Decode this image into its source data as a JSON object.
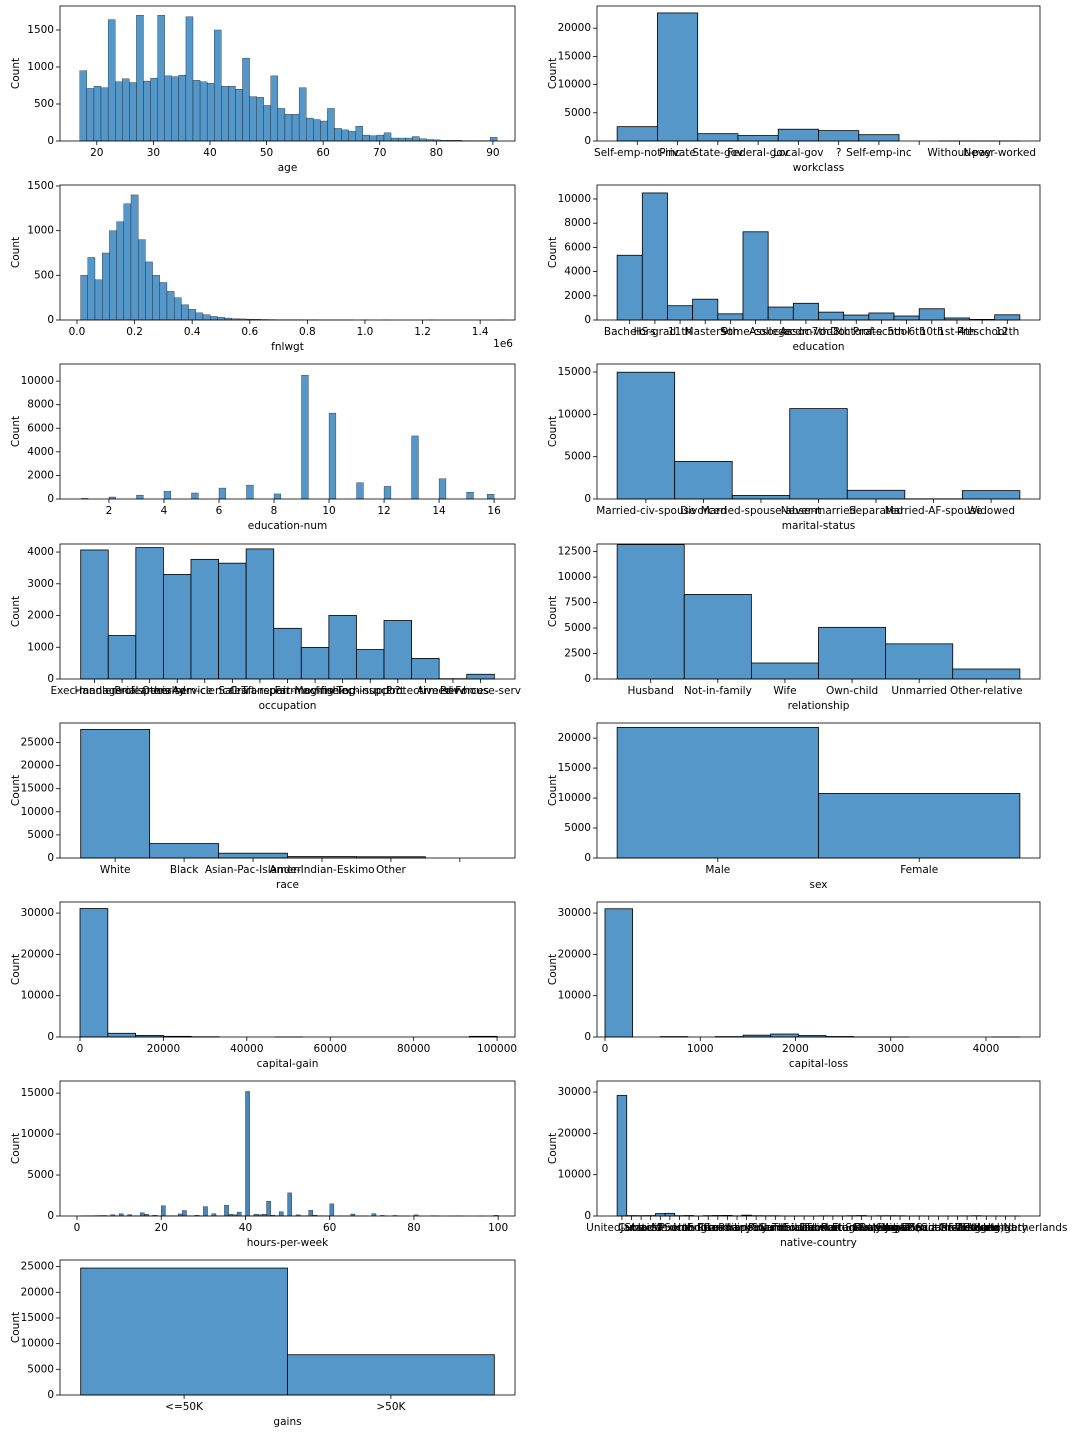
{
  "chart_data": [
    {
      "type": "histogram",
      "xlabel": "age",
      "ylabel": "Count",
      "color": "#5597c8",
      "bins": [
        17,
        18.25,
        19.5,
        20.75,
        22,
        23.25,
        24.5,
        25.75,
        27,
        28.25,
        29.5,
        30.75,
        32,
        33.25,
        34.5,
        35.75,
        37,
        38.25,
        39.5,
        40.75,
        42,
        43.25,
        44.5,
        45.75,
        47,
        48.25,
        49.5,
        50.75,
        52,
        53.25,
        54.5,
        55.75,
        57,
        58.25,
        59.5,
        60.75,
        62,
        63.25,
        64.5,
        65.75,
        67,
        68.25,
        69.5,
        70.75,
        72,
        73.25,
        74.5,
        75.75,
        77,
        78.25,
        79.5,
        80.75,
        82,
        83.25,
        84.5,
        85.75,
        87,
        88.25,
        89.5,
        90.75
      ],
      "values": [
        950,
        710,
        740,
        720,
        1640,
        800,
        840,
        790,
        1700,
        810,
        850,
        1700,
        880,
        870,
        890,
        1680,
        820,
        800,
        780,
        1500,
        740,
        740,
        700,
        1120,
        600,
        590,
        480,
        880,
        440,
        360,
        360,
        720,
        310,
        290,
        270,
        440,
        170,
        150,
        130,
        200,
        80,
        70,
        80,
        110,
        40,
        40,
        40,
        60,
        30,
        20,
        15,
        10,
        10,
        10,
        5,
        5,
        5,
        5,
        50
      ],
      "xlim": [
        13.5,
        93.9
      ],
      "xticks": [
        20,
        30,
        40,
        50,
        60,
        70,
        80,
        90
      ],
      "ylim": [
        0,
        1824
      ],
      "yticks": [
        0,
        500,
        1000,
        1500
      ]
    },
    {
      "type": "bar",
      "xlabel": "workclass",
      "ylabel": "Count",
      "color": "#5597c8",
      "categories": [
        "Self-emp-not-inc",
        "Private",
        "State-gov",
        "Federal-gov",
        "Local-gov",
        "?",
        "Self-emp-inc",
        null,
        "Without-pay",
        "Never-worked"
      ],
      "values": [
        2540,
        22700,
        1300,
        960,
        2090,
        1840,
        1120,
        null,
        14,
        7
      ],
      "ylim": [
        0,
        23930
      ],
      "yticks": [
        0,
        5000,
        10000,
        15000,
        20000
      ]
    },
    {
      "type": "histogram",
      "xlabel": "fnlwgt",
      "ylabel": "Count",
      "color": "#5597c8",
      "x_offset_label": "1e6",
      "bins": [
        12500,
        37500,
        62500,
        87500,
        112500,
        137500,
        162500,
        187500,
        212500,
        237500,
        262500,
        287500,
        312500,
        337500,
        362500,
        387500,
        412500,
        437500,
        462500,
        487500,
        512500,
        537500,
        562500,
        587500,
        612500,
        637500,
        662500,
        687500,
        712500,
        737500,
        762500,
        787500,
        812500,
        837500,
        862500,
        887500,
        912500,
        937500,
        962500,
        987500,
        1012500,
        1037500,
        1062500,
        1087500,
        1112500,
        1137500,
        1162500,
        1187500,
        1212500,
        1237500,
        1262500,
        1287500,
        1312500,
        1337500,
        1362500,
        1387500,
        1412500,
        1437500,
        1462500,
        1487500
      ],
      "values": [
        500,
        700,
        450,
        750,
        1000,
        1100,
        1300,
        1400,
        900,
        650,
        500,
        420,
        320,
        250,
        170,
        120,
        80,
        60,
        40,
        30,
        22,
        15,
        12,
        10,
        8,
        6,
        5,
        4,
        3,
        3,
        2,
        2,
        2,
        1,
        1,
        1,
        1,
        1,
        0,
        1,
        0,
        0,
        1,
        0,
        0,
        0,
        0,
        0,
        1,
        0,
        0,
        0,
        0,
        0,
        0,
        0,
        0,
        0,
        1
      ],
      "xlim": [
        -59000,
        1521000
      ],
      "xticks": [
        {
          "value": 0,
          "label": "0.0"
        },
        {
          "value": 200000,
          "label": "0.2"
        },
        {
          "value": 400000,
          "label": "0.4"
        },
        {
          "value": 600000,
          "label": "0.6"
        },
        {
          "value": 800000,
          "label": "0.8"
        },
        {
          "value": 1000000,
          "label": "1.0"
        },
        {
          "value": 1200000,
          "label": "1.2"
        },
        {
          "value": 1400000,
          "label": "1.4"
        }
      ],
      "ylim": [
        0,
        1511
      ],
      "yticks": [
        0,
        500,
        1000,
        1500
      ]
    },
    {
      "type": "bar",
      "xlabel": "education",
      "ylabel": "Count",
      "color": "#5597c8",
      "categories": [
        "Bachelors",
        "HS-grad",
        "11th",
        "Masters",
        "9th",
        "Some-college",
        "Assoc-acdm",
        "Assoc-voc",
        "7th-8th",
        "Doctorate",
        "Prof-school",
        "5th-6th",
        "10th",
        "1st-4th",
        "Preschool",
        "12th"
      ],
      "values": [
        5350,
        10500,
        1180,
        1720,
        510,
        7290,
        1070,
        1380,
        650,
        410,
        580,
        330,
        930,
        170,
        50,
        430
      ],
      "ylim": [
        0,
        11157
      ],
      "yticks": [
        0,
        2000,
        4000,
        6000,
        8000,
        10000
      ]
    },
    {
      "type": "histogram",
      "xlabel": "education-num",
      "ylabel": "Count",
      "color": "#5597c8",
      "bins": [
        1,
        1.25,
        1.5,
        1.75,
        2,
        2.25,
        2.5,
        2.75,
        3,
        3.25,
        3.5,
        3.75,
        4,
        4.25,
        4.5,
        4.75,
        5,
        5.25,
        5.5,
        5.75,
        6,
        6.25,
        6.5,
        6.75,
        7,
        7.25,
        7.5,
        7.75,
        8,
        8.25,
        8.5,
        8.75,
        9,
        9.25,
        9.5,
        9.75,
        10,
        10.25,
        10.5,
        10.75,
        11,
        11.25,
        11.5,
        11.75,
        12,
        12.25,
        12.5,
        12.75,
        13,
        13.25,
        13.5,
        13.75,
        14,
        14.25,
        14.5,
        14.75,
        15,
        15.25,
        15.5,
        15.75,
        16
      ],
      "values": [
        50,
        0,
        0,
        0,
        170,
        0,
        0,
        0,
        330,
        0,
        0,
        0,
        650,
        0,
        0,
        0,
        510,
        0,
        0,
        0,
        930,
        0,
        0,
        0,
        1180,
        0,
        0,
        0,
        430,
        0,
        0,
        0,
        10500,
        0,
        0,
        0,
        7290,
        0,
        0,
        0,
        1380,
        0,
        0,
        0,
        1070,
        0,
        0,
        0,
        5350,
        0,
        0,
        0,
        1720,
        0,
        0,
        0,
        580,
        0,
        0,
        410
      ],
      "xlim": [
        0.22,
        16.76
      ],
      "xticks": [
        2,
        4,
        6,
        8,
        10,
        12,
        14,
        16
      ],
      "ylim": [
        0,
        11453
      ],
      "yticks": [
        0,
        2000,
        4000,
        6000,
        8000,
        10000
      ]
    },
    {
      "type": "bar",
      "xlabel": "marital-status",
      "ylabel": "Count",
      "color": "#5597c8",
      "categories": [
        "Married-civ-spouse",
        "Divorced",
        "Married-spouse-absent",
        "Never-married",
        "Separated",
        "Married-AF-spouse",
        "Widowed"
      ],
      "values": [
        14980,
        4440,
        420,
        10680,
        1030,
        23,
        990
      ],
      "ylim": [
        0,
        15950
      ],
      "yticks": [
        0,
        5000,
        10000,
        15000
      ]
    },
    {
      "type": "bar",
      "xlabel": "occupation",
      "ylabel": "Count",
      "color": "#5597c8",
      "categories": [
        "Exec-managerial",
        "Handlers-cleaners",
        "Prof-specialty",
        "Other-service",
        "Adm-clerical",
        "Sales",
        "Craft-repair",
        "Transport-moving",
        "Farming-fishing",
        "Machine-op-inspct",
        "Tech-support",
        "?",
        "Protective-serv",
        "Armed-Forces",
        "Priv-house-serv"
      ],
      "values": [
        4066,
        1370,
        4140,
        3295,
        3770,
        3650,
        4099,
        1597,
        994,
        2002,
        928,
        1843,
        649,
        9,
        149
      ],
      "ylim": [
        0,
        4254
      ],
      "yticks": [
        0,
        1000,
        2000,
        3000,
        4000
      ]
    },
    {
      "type": "bar",
      "xlabel": "relationship",
      "ylabel": "Count",
      "color": "#5597c8",
      "categories": [
        "Husband",
        "Not-in-family",
        "Wife",
        "Own-child",
        "Unmarried",
        "Other-relative"
      ],
      "values": [
        13190,
        8300,
        1570,
        5070,
        3450,
        980
      ],
      "ylim": [
        0,
        13250
      ],
      "yticks": [
        0,
        2500,
        5000,
        7500,
        10000,
        12500
      ]
    },
    {
      "type": "bar",
      "xlabel": "race",
      "ylabel": "Count",
      "color": "#5597c8",
      "categories": [
        "White",
        "Black",
        "Asian-Pac-Islander",
        "Amer-Indian-Eskimo",
        "Other",
        null
      ],
      "values": [
        27816,
        3124,
        1039,
        311,
        271,
        null
      ],
      "ylim": [
        0,
        29208
      ],
      "yticks": [
        0,
        5000,
        10000,
        15000,
        20000,
        25000
      ]
    },
    {
      "type": "bar",
      "xlabel": "sex",
      "ylabel": "Count",
      "color": "#5597c8",
      "categories": [
        "Male",
        "Female"
      ],
      "values": [
        21790,
        10770
      ],
      "ylim": [
        0,
        22520
      ],
      "yticks": [
        0,
        5000,
        10000,
        15000,
        20000
      ]
    },
    {
      "type": "histogram",
      "xlabel": "capital-gain",
      "ylabel": "Count",
      "color": "#5597c8",
      "bins": [
        0,
        6667,
        13333,
        20000,
        26667,
        33333,
        40000,
        46667,
        53333,
        60000,
        66667,
        73333,
        80000,
        86667,
        93333,
        100000
      ],
      "values": [
        31100,
        900,
        380,
        160,
        60,
        0,
        0,
        10,
        0,
        0,
        0,
        0,
        0,
        0,
        160
      ],
      "xlim": [
        -4800,
        104300
      ],
      "xticks": [
        0,
        20000,
        40000,
        60000,
        80000,
        100000
      ],
      "ylim": [
        0,
        32680
      ],
      "yticks": [
        0,
        10000,
        20000,
        30000
      ]
    },
    {
      "type": "histogram",
      "xlabel": "capital-loss",
      "ylabel": "Count",
      "color": "#5597c8",
      "bins": [
        0,
        290,
        580,
        870,
        1160,
        1450,
        1740,
        2030,
        2320,
        2610,
        2900,
        3190,
        3480,
        3770,
        4060,
        4350
      ],
      "values": [
        31040,
        0,
        100,
        0,
        100,
        450,
        720,
        350,
        120,
        20,
        10,
        0,
        0,
        0,
        5
      ],
      "xlim": [
        -84,
        4567
      ],
      "xticks": [
        0,
        1000,
        2000,
        3000,
        4000
      ],
      "ylim": [
        0,
        32680
      ],
      "yticks": [
        0,
        10000,
        20000,
        30000
      ]
    },
    {
      "type": "histogram",
      "xlabel": "hours-per-week",
      "ylabel": "Count",
      "color": "#4a86b8",
      "bins": [
        1,
        2,
        3,
        4,
        5,
        6,
        7,
        8,
        9,
        10,
        11,
        12,
        13,
        14,
        15,
        16,
        17,
        18,
        19,
        20,
        21,
        22,
        23,
        24,
        25,
        26,
        27,
        28,
        29,
        30,
        31,
        32,
        33,
        34,
        35,
        36,
        37,
        38,
        39,
        40,
        41,
        42,
        43,
        44,
        45,
        46,
        47,
        48,
        49,
        50,
        51,
        52,
        53,
        54,
        55,
        56,
        57,
        58,
        59,
        60,
        61,
        62,
        63,
        64,
        65,
        66,
        67,
        68,
        69,
        70,
        71,
        72,
        73,
        74,
        75,
        76,
        77,
        78,
        79,
        80,
        81,
        82,
        83,
        84,
        85,
        86,
        87,
        88,
        89,
        90,
        91,
        92,
        93,
        94,
        95,
        96,
        97,
        98,
        99,
        100
      ],
      "values": [
        20,
        30,
        40,
        55,
        60,
        65,
        30,
        150,
        20,
        280,
        10,
        170,
        25,
        35,
        400,
        210,
        30,
        80,
        15,
        1250,
        25,
        45,
        20,
        250,
        670,
        30,
        30,
        85,
        10,
        1150,
        5,
        270,
        40,
        30,
        1300,
        220,
        150,
        480,
        40,
        15200,
        35,
        220,
        150,
        210,
        1800,
        80,
        50,
        520,
        30,
        2820,
        15,
        140,
        25,
        40,
        690,
        95,
        20,
        30,
        5,
        1480,
        5,
        20,
        10,
        15,
        245,
        15,
        5,
        10,
        0,
        290,
        0,
        70,
        5,
        0,
        65,
        5,
        5,
        5,
        0,
        135,
        5,
        0,
        0,
        45,
        15,
        0,
        0,
        5,
        5,
        30,
        5,
        0,
        0,
        0,
        5,
        5,
        0,
        10,
        85
      ],
      "xlim": [
        -4.04,
        104
      ],
      "xticks": [
        0,
        20,
        40,
        60,
        80,
        100
      ],
      "ylim": [
        0,
        16476
      ],
      "yticks": [
        0,
        5000,
        10000,
        15000
      ]
    },
    {
      "type": "bar",
      "xlabel": "native-country",
      "ylabel": "Count",
      "color": "#5597c8",
      "categories": [
        "United-States",
        "Cuba",
        "Jamaica",
        "India",
        "?",
        "Mexico",
        "South",
        "Puerto-Rico",
        "Honduras",
        "England",
        "Canada",
        "Germany",
        "Iran",
        "Philippines",
        "Italy",
        "Poland",
        "Columbia",
        "Cambodia",
        "Thailand",
        "Ecuador",
        "Laos",
        "Taiwan",
        "Haiti",
        "Portugal",
        "Dominican-Republic",
        "El-Salvador",
        "France",
        "Guatemala",
        "China",
        "Japan",
        "Yugoslavia",
        "Peru",
        "Outlying-US(Guam-USVI-etc)",
        "Scotland",
        "Trinadad&Tobago",
        "Greece",
        "Nicaragua",
        "Vietnam",
        "Hong",
        "Ireland",
        "Hungary",
        "Holand-Netherlands"
      ],
      "values": [
        29170,
        95,
        81,
        100,
        583,
        643,
        80,
        114,
        13,
        90,
        121,
        137,
        43,
        198,
        73,
        60,
        59,
        19,
        18,
        28,
        18,
        51,
        44,
        37,
        70,
        106,
        29,
        64,
        75,
        62,
        16,
        31,
        14,
        12,
        19,
        29,
        34,
        67,
        20,
        24,
        13,
        1
      ],
      "ylim": [
        0,
        32680
      ],
      "yticks": [
        0,
        10000,
        20000,
        30000
      ]
    },
    {
      "type": "bar",
      "xlabel": "gains",
      "ylabel": "Count",
      "color": "#5597c8",
      "categories": [
        "<=50K",
        ">50K"
      ],
      "values": [
        24720,
        7840
      ],
      "ylim": [
        0,
        26290
      ],
      "yticks": [
        0,
        5000,
        10000,
        15000,
        20000,
        25000
      ]
    }
  ]
}
